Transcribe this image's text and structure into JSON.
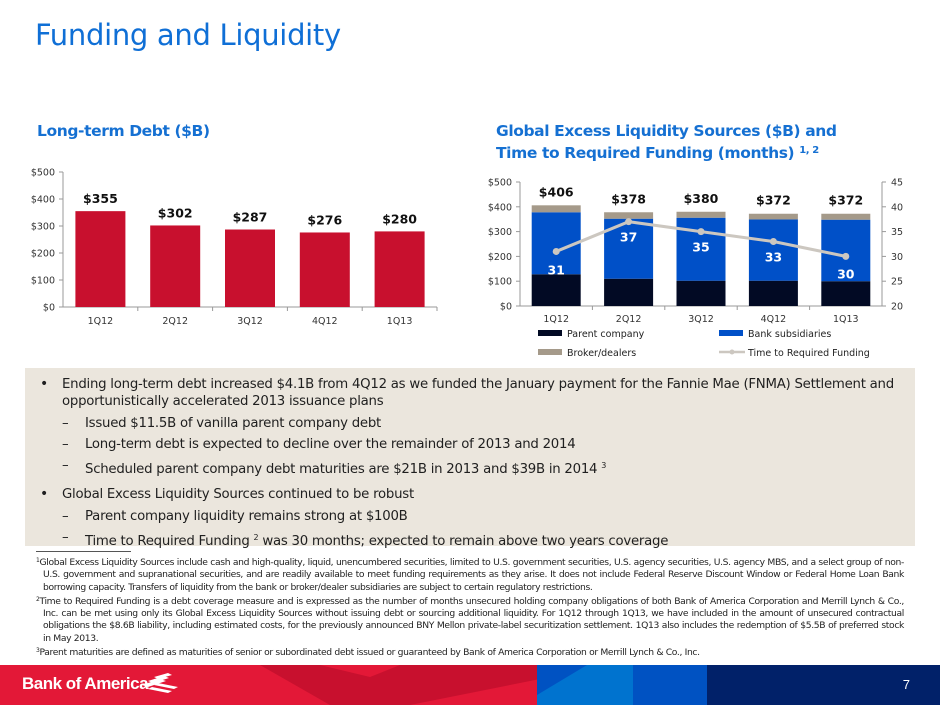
{
  "page": {
    "title": "Funding and Liquidity",
    "page_number": "7",
    "brand": "Bank of America"
  },
  "colors": {
    "title_blue": "#0f6fd6",
    "bar_red": "#c8102e",
    "parent_company": "#020a24",
    "bank_subsidiaries": "#0050c8",
    "broker_dealers": "#a59a8a",
    "time_line": "#ccc7c0",
    "panel_bg": "#ebe6dd"
  },
  "chart_data": [
    {
      "type": "bar",
      "title": "Long-term Debt ($B)",
      "categories": [
        "1Q12",
        "2Q12",
        "3Q12",
        "4Q12",
        "1Q13"
      ],
      "values": [
        355,
        302,
        287,
        276,
        280
      ],
      "data_labels": [
        "$355",
        "$302",
        "$287",
        "$276",
        "$280"
      ],
      "xlabel": "",
      "ylabel": "",
      "ylim": [
        0,
        500
      ],
      "yticks": [
        0,
        100,
        200,
        300,
        400,
        500
      ],
      "ytick_labels": [
        "$0",
        "$100",
        "$200",
        "$300",
        "$400",
        "$500"
      ],
      "grid": false,
      "legend": null
    },
    {
      "type": "bar",
      "stacked": true,
      "title": "Global Excess Liquidity Sources ($B) and Time to Required Funding (months)",
      "title_line1": "Global Excess Liquidity Sources ($B) and",
      "title_line2": "Time to Required Funding (months)",
      "title_superscript": "1, 2",
      "categories": [
        "1Q12",
        "2Q12",
        "3Q12",
        "4Q12",
        "1Q13"
      ],
      "series": [
        {
          "name": "Parent company",
          "axis": "left",
          "values": [
            128,
            110,
            102,
            102,
            100
          ]
        },
        {
          "name": "Bank subsidiaries",
          "axis": "left",
          "values": [
            250,
            242,
            254,
            247,
            248
          ]
        },
        {
          "name": "Broker/dealers",
          "axis": "left",
          "values": [
            28,
            26,
            24,
            23,
            24
          ]
        },
        {
          "name": "Time to Required Funding",
          "type": "line",
          "axis": "right",
          "values": [
            31,
            37,
            35,
            33,
            30
          ]
        }
      ],
      "totals": [
        406,
        378,
        380,
        372,
        372
      ],
      "total_labels": [
        "$406",
        "$378",
        "$380",
        "$372",
        "$372"
      ],
      "line_labels": [
        "31",
        "37",
        "35",
        "33",
        "30"
      ],
      "ylim": [
        0,
        500
      ],
      "yticks": [
        0,
        100,
        200,
        300,
        400,
        500
      ],
      "ytick_labels": [
        "$0",
        "$100",
        "$200",
        "$300",
        "$400",
        "$500"
      ],
      "y2lim": [
        20,
        45
      ],
      "y2ticks": [
        20,
        25,
        30,
        35,
        40,
        45
      ],
      "y2tick_labels": [
        "20",
        "25",
        "30",
        "35",
        "40",
        "45"
      ],
      "grid": false,
      "legend": "bottom",
      "legend_entries": [
        "Parent company",
        "Bank subsidiaries",
        "Broker/dealers",
        "Time to Required Funding"
      ]
    }
  ],
  "bullets": [
    {
      "level": 1,
      "text": "Ending long-term debt increased $4.1B from 4Q12 as we funded the January payment for the Fannie Mae (FNMA) Settlement and opportunistically accelerated 2013 issuance plans",
      "sup": ""
    },
    {
      "level": 2,
      "text": "Issued $11.5B of vanilla parent company debt",
      "sup": ""
    },
    {
      "level": 2,
      "text": "Long-term debt is expected to decline over the remainder of 2013 and 2014",
      "sup": ""
    },
    {
      "level": 2,
      "text": "Scheduled parent company debt maturities are $21B in 2013 and $39B in 2014",
      "sup": "3"
    },
    {
      "level": 1,
      "text": "Global Excess Liquidity Sources continued to be robust",
      "sup": ""
    },
    {
      "level": 2,
      "text": "Parent company liquidity remains strong at $100B",
      "sup": ""
    },
    {
      "level": 2,
      "text_before": "Time to Required Funding",
      "sup": "2",
      "text_after": "was 30 months; expected to remain above two years coverage"
    }
  ],
  "footnotes": [
    {
      "num": "1",
      "text": "Global Excess Liquidity Sources include cash and high-quality, liquid, unencumbered securities, limited to U.S. government securities, U.S. agency securities, U.S. agency MBS, and a select group of non-U.S. government and supranational securities, and are readily available to meet funding requirements as they arise. It does not include Federal Reserve Discount Window or Federal Home Loan Bank borrowing capacity. Transfers of liquidity from the bank or broker/dealer subsidiaries are subject to certain regulatory restrictions."
    },
    {
      "num": "2",
      "text": "Time to Required Funding is a debt coverage measure and is expressed as the number of months unsecured holding company obligations of both Bank of America Corporation and Merrill Lynch & Co., Inc. can be met using only its Global Excess Liquidity Sources without issuing debt or sourcing additional liquidity. For 1Q12 through 1Q13, we have included in the amount of unsecured contractual obligations the $8.6B liability, including estimated costs, for the previously announced BNY Mellon private-label securitization settlement. 1Q13 also includes the redemption of $5.5B of preferred stock in May 2013."
    },
    {
      "num": "3",
      "text": "Parent maturities are defined as maturities of senior or subordinated debt issued or guaranteed by Bank of America Corporation or Merrill Lynch & Co., Inc."
    }
  ]
}
